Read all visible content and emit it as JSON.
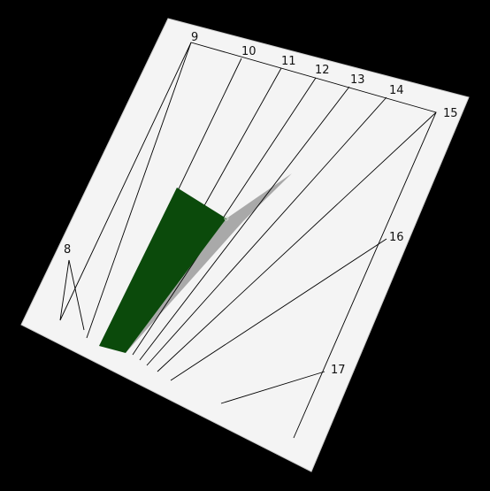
{
  "sundial": {
    "colors": {
      "background": "#000000",
      "plate": "#f4f4f4",
      "plate_edge": "#cccccc",
      "lines": "#000000",
      "gnomon": "#0b4a0b",
      "shadow": "#a9a9a9"
    },
    "hour_labels": [
      "8",
      "9",
      "10",
      "11",
      "12",
      "13",
      "14",
      "15",
      "16",
      "17"
    ]
  }
}
